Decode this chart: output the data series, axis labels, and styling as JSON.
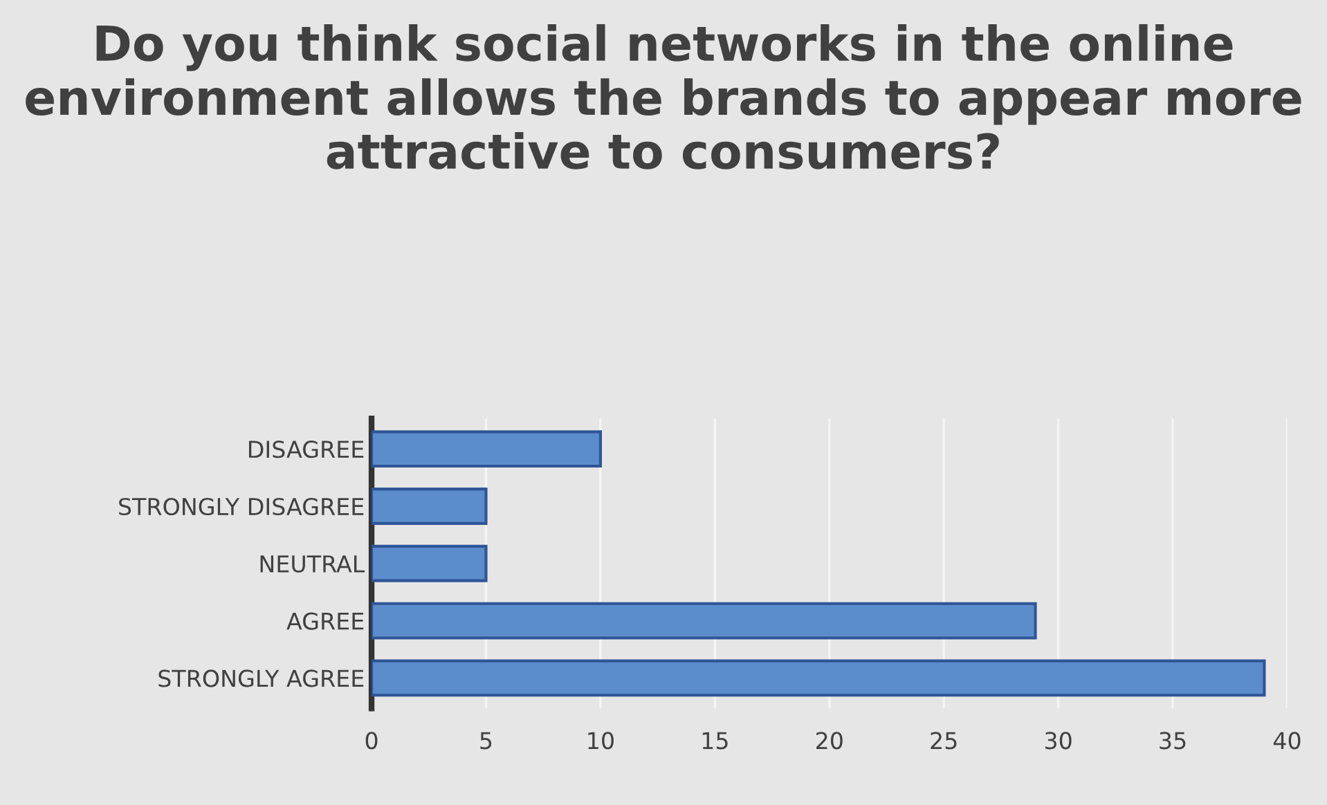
{
  "chart_data": {
    "type": "bar",
    "orientation": "horizontal",
    "title": "Do you think social networks in the online environment allows the brands to appear more attractive to consumers?",
    "categories": [
      "DISAGREE",
      "STRONGLY DISAGREE",
      "NEUTRAL",
      "AGREE",
      "STRONGLY AGREE"
    ],
    "values": [
      10,
      5,
      5,
      29,
      39
    ],
    "color": "#5b8ccb",
    "xlim": [
      0,
      40
    ],
    "xticks": [
      0,
      5,
      10,
      15,
      20,
      25,
      30,
      35,
      40
    ],
    "grid": "x"
  }
}
